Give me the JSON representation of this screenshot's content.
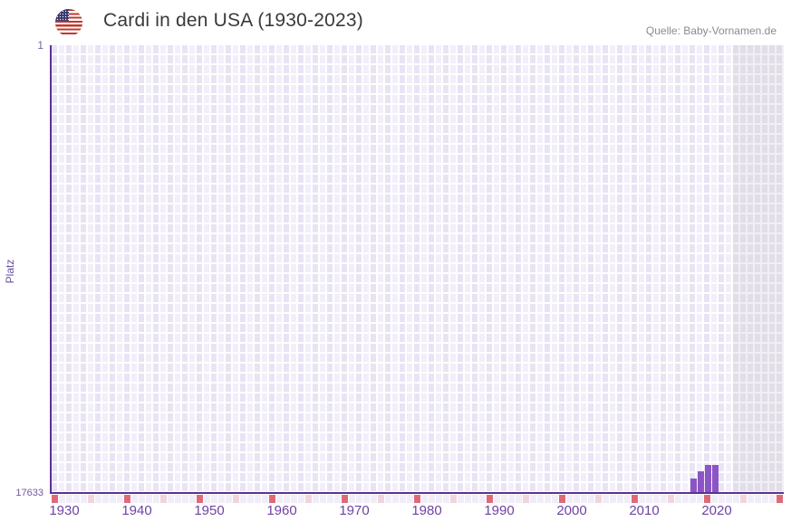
{
  "header": {
    "title": "Cardi in den USA (1930-2023)",
    "source": "Quelle: Baby-Vornamen.de",
    "flag_icon": "us-flag-icon"
  },
  "axes": {
    "y_label": "Platz",
    "y_top_tick": "1",
    "y_bottom_tick": "17633"
  },
  "chart_data": {
    "type": "bar",
    "title": "Cardi in den USA (1930-2023)",
    "ylabel": "Platz",
    "xlabel": "",
    "y_axis_inverted": true,
    "ylim": [
      1,
      17633
    ],
    "x_range_years": [
      1930,
      2023
    ],
    "x_display_end_year": 2030,
    "grid": true,
    "legend": "none",
    "x_ticks": [
      1930,
      1940,
      1950,
      1960,
      1970,
      1980,
      1990,
      2000,
      2010,
      2020
    ],
    "series": [
      {
        "name": "Cardi",
        "points": [
          {
            "year": 2018,
            "rank": 17100
          },
          {
            "year": 2019,
            "rank": 16800
          },
          {
            "year": 2020,
            "rank": 16550
          },
          {
            "year": 2021,
            "rank": 16550
          }
        ]
      }
    ],
    "annotations": {
      "decade_marker_years": [
        1930,
        1940,
        1950,
        1960,
        1970,
        1980,
        1990,
        2000,
        2010,
        2020,
        2030
      ],
      "half_decade_marker_years": [
        1935,
        1945,
        1955,
        1965,
        1975,
        1985,
        1995,
        2005,
        2015,
        2025
      ],
      "no_data_band_years": [
        2024,
        2030
      ]
    }
  },
  "colors": {
    "bar": "#8c55c6",
    "axis_line": "#5c3192",
    "grid_cell": "#e9e4f4",
    "grid_cell_alt": "#f2effa",
    "future_band_cell": "#e1dee9",
    "decade_marker": "#dd6b77",
    "half_decade_marker": "#f0d4de",
    "tick_strip_default": "#f1edf8",
    "x_label_text": "#6f42a3",
    "y_label_text": "#6f5b9e",
    "title_text": "#3a3a3a",
    "source_text": "#8a8a93"
  }
}
